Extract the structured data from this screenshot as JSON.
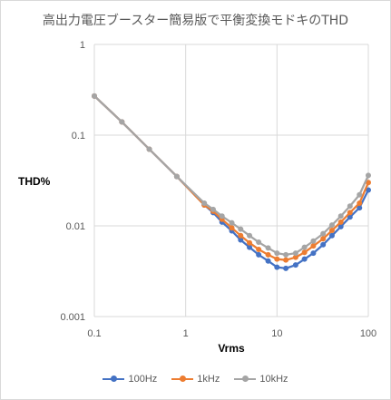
{
  "chart_data": {
    "type": "line",
    "title": "高出力電圧ブースター簡易版で平衡変換モドキのTHD",
    "xlabel": "Vrms",
    "ylabel": "THD%",
    "xscale": "log",
    "yscale": "log",
    "xlim": [
      0.1,
      100
    ],
    "ylim": [
      0.001,
      1
    ],
    "xticks": [
      "0.1",
      "1",
      "10",
      "100"
    ],
    "yticks": [
      "0.001",
      "0.01",
      "0.1",
      "1"
    ],
    "grid": true,
    "legend_position": "bottom",
    "x": [
      0.1,
      0.2,
      0.4,
      0.8,
      1.6,
      2.0,
      2.5,
      3.2,
      4.0,
      5.0,
      6.3,
      8.0,
      10.0,
      12.5,
      16.0,
      20.0,
      25.0,
      32.0,
      40.0,
      50.0,
      63.0,
      80.0,
      100.0
    ],
    "series": [
      {
        "name": "100Hz",
        "color": "#4472c4",
        "values": [
          0.27,
          0.14,
          0.07,
          0.035,
          0.017,
          0.014,
          0.011,
          0.0088,
          0.007,
          0.0058,
          0.0048,
          0.0041,
          0.0035,
          0.0034,
          0.0037,
          0.0043,
          0.005,
          0.0062,
          0.0078,
          0.0098,
          0.0125,
          0.0158,
          0.0248
        ]
      },
      {
        "name": "1kHz",
        "color": "#ed7d31",
        "values": [
          0.27,
          0.14,
          0.07,
          0.035,
          0.017,
          0.0145,
          0.0118,
          0.0095,
          0.0078,
          0.0065,
          0.0055,
          0.0048,
          0.0043,
          0.0042,
          0.0045,
          0.0051,
          0.006,
          0.0072,
          0.0089,
          0.011,
          0.014,
          0.0178,
          0.03
        ]
      },
      {
        "name": "10kHz",
        "color": "#a5a5a5",
        "values": [
          0.27,
          0.14,
          0.07,
          0.035,
          0.0178,
          0.0152,
          0.0128,
          0.0108,
          0.0092,
          0.0078,
          0.0066,
          0.0057,
          0.005,
          0.0048,
          0.005,
          0.0058,
          0.0068,
          0.0082,
          0.0102,
          0.0128,
          0.0165,
          0.022,
          0.036
        ]
      }
    ]
  }
}
